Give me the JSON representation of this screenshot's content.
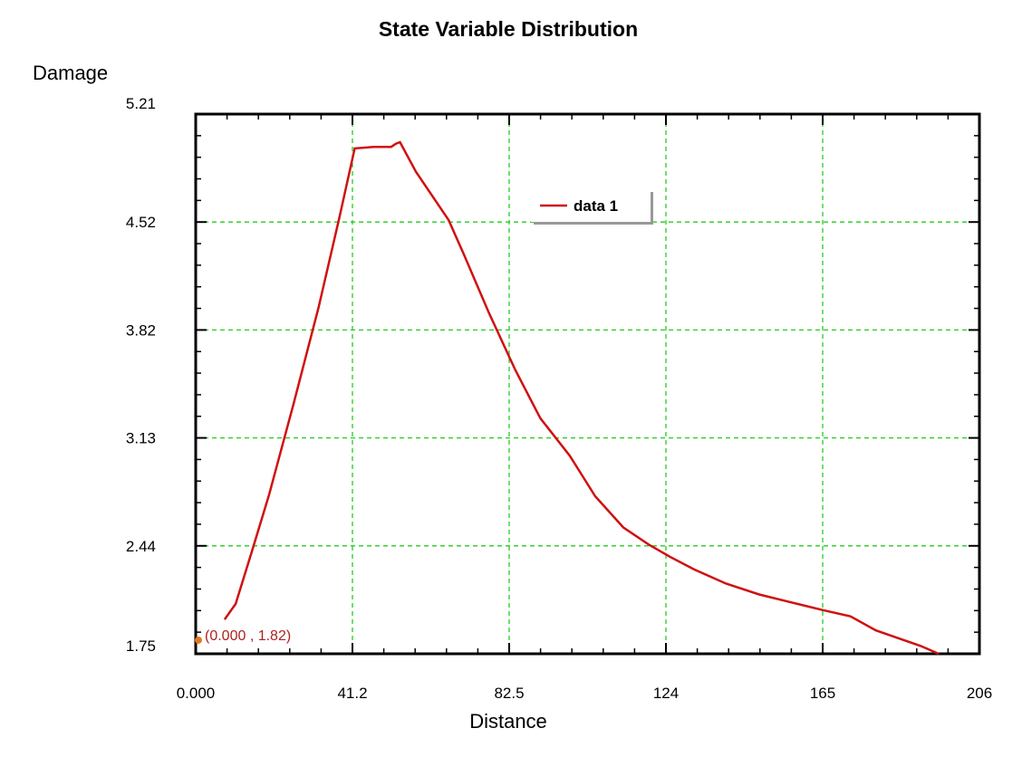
{
  "chart_data": {
    "type": "line",
    "title": "State Variable Distribution",
    "xlabel": "Distance",
    "ylabel": "Damage",
    "xlim": [
      0,
      206
    ],
    "ylim": [
      1.75,
      5.21
    ],
    "xticks": [
      "0.000",
      "41.2",
      "82.5",
      "124",
      "165",
      "206"
    ],
    "yticks": [
      "5.21",
      "4.52",
      "3.82",
      "3.13",
      "2.44",
      "1.75"
    ],
    "grid": true,
    "legend": {
      "position": "top-center",
      "entries": [
        "data 1"
      ]
    },
    "colors": {
      "series": "#d01010",
      "grid": "#22cc22",
      "annotation": "#b02020",
      "marker": "#e07a20"
    },
    "annotation": {
      "text": "(0.000 , 1.82)",
      "x": 0,
      "y": 1.82
    },
    "series": [
      {
        "name": "data 1",
        "x": [
          7.6,
          10.5,
          14.7,
          19.3,
          25.7,
          32.3,
          37.8,
          41.8,
          46.8,
          51.4,
          52.6,
          53.7,
          57.9,
          66.5,
          70.5,
          77.0,
          84.0,
          90.6,
          98.3,
          105.0,
          112.4,
          119.1,
          124.8,
          131.1,
          139.4,
          148.1,
          156.5,
          164.9,
          172.1,
          178.8,
          190.6,
          195.3
        ],
        "y": [
          1.97,
          2.07,
          2.4,
          2.77,
          3.35,
          3.97,
          4.55,
          4.99,
          5.0,
          5.0,
          5.02,
          5.03,
          4.84,
          4.53,
          4.31,
          3.94,
          3.57,
          3.26,
          3.02,
          2.76,
          2.56,
          2.45,
          2.37,
          2.29,
          2.2,
          2.13,
          2.08,
          2.03,
          1.99,
          1.9,
          1.8,
          1.75
        ]
      }
    ]
  }
}
